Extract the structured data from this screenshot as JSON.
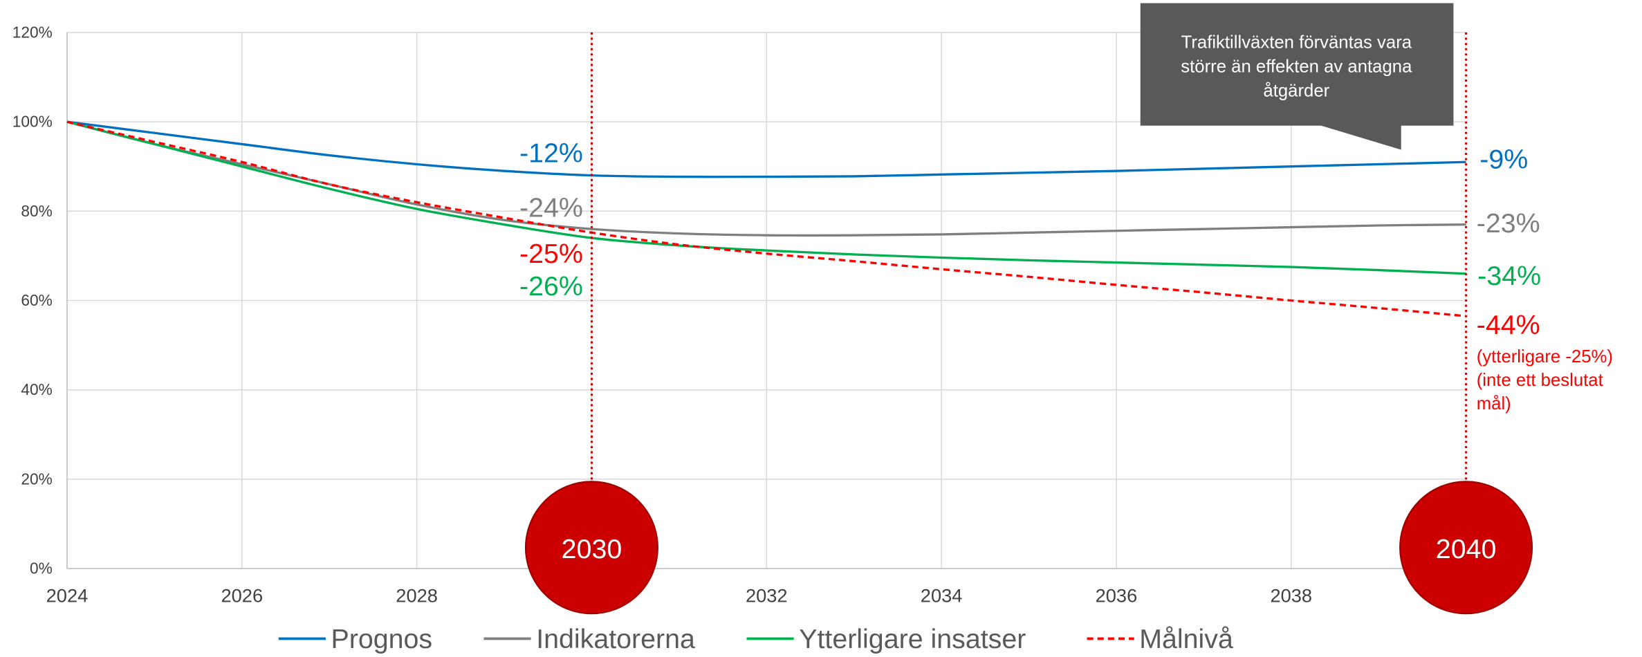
{
  "chart_data": {
    "type": "line",
    "x": [
      2024,
      2025,
      2026,
      2027,
      2028,
      2029,
      2030,
      2031,
      2032,
      2033,
      2034,
      2035,
      2036,
      2037,
      2038,
      2039,
      2040
    ],
    "xlim": [
      2024,
      2040
    ],
    "xticks": [
      2024,
      2026,
      2028,
      2030,
      2032,
      2034,
      2036,
      2038
    ],
    "ylim": [
      0,
      120
    ],
    "yticks": [
      {
        "value": 0,
        "label": "0%"
      },
      {
        "value": 20,
        "label": "20%"
      },
      {
        "value": 40,
        "label": "40%"
      },
      {
        "value": 60,
        "label": "60%"
      },
      {
        "value": 80,
        "label": "80%"
      },
      {
        "value": 100,
        "label": "100%"
      },
      {
        "value": 120,
        "label": "120%"
      }
    ],
    "grid": true,
    "legend": "bottom",
    "series": [
      {
        "name": "Prognos",
        "color": "#0070c0",
        "dashed": false,
        "values": [
          100,
          97.5,
          95,
          92.5,
          90.5,
          89,
          88,
          87.7,
          87.7,
          87.8,
          88.2,
          88.6,
          89,
          89.5,
          90,
          90.5,
          91
        ]
      },
      {
        "name": "Indikatorerna",
        "color": "#7f7f7f",
        "dashed": false,
        "values": [
          100,
          95,
          90.5,
          86,
          81.5,
          78,
          76,
          75,
          74.6,
          74.6,
          74.8,
          75.2,
          75.6,
          76,
          76.4,
          76.8,
          77
        ]
      },
      {
        "name": "Ytterligare insatser",
        "color": "#00b050",
        "dashed": false,
        "values": [
          100,
          95,
          90,
          85,
          80.5,
          77,
          74,
          72.3,
          71.2,
          70.3,
          69.6,
          69,
          68.5,
          68,
          67.5,
          66.8,
          66
        ]
      },
      {
        "name": "Målnivå",
        "color": "#ff0000",
        "dashed": true,
        "values": [
          100,
          95.5,
          91,
          86,
          82,
          78.5,
          75.2,
          72.5,
          70.5,
          68.8,
          67,
          65.3,
          63.5,
          61.8,
          60,
          58.3,
          56.5
        ]
      }
    ],
    "milestones": [
      2030,
      2040
    ],
    "milestone_color": "#cc0000",
    "annotations": [
      {
        "text": "-12%",
        "color": "#0070c0"
      },
      {
        "text": "-24%",
        "color": "#7f7f7f"
      },
      {
        "text": "-25%",
        "color": "#ff0000"
      },
      {
        "text": "-26%",
        "color": "#00b050"
      },
      {
        "text": "-9%",
        "color": "#0070c0"
      },
      {
        "text": "-23%",
        "color": "#7f7f7f"
      },
      {
        "text": "-34%",
        "color": "#00b050"
      },
      {
        "text": "-44%",
        "color": "#ff0000"
      }
    ],
    "notes": {
      "color": "#ff0000",
      "lines": [
        "(ytterligare -25%)",
        "(inte ett beslutat",
        "mål)"
      ]
    },
    "callout": {
      "color": "#595959",
      "lines": [
        "Trafiktillväxten förväntas vara",
        "större än effekten av antagna",
        "åtgärder"
      ]
    }
  }
}
